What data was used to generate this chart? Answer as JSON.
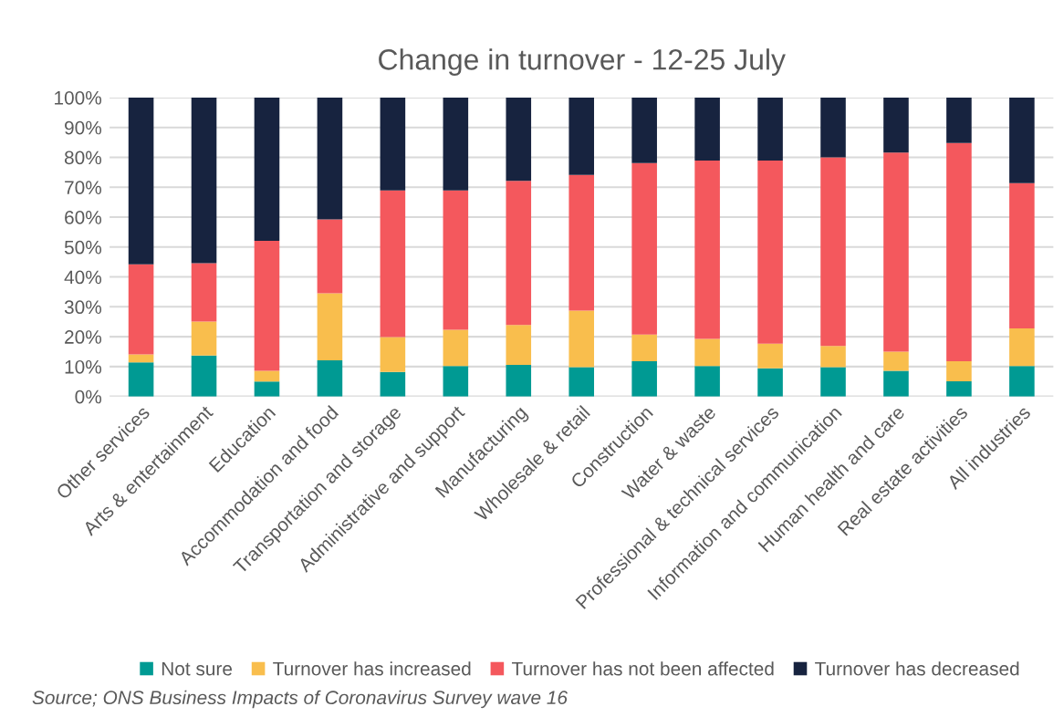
{
  "chart_data": {
    "type": "bar",
    "stacked": true,
    "title": "Change in turnover - 12-25 July",
    "categories": [
      "Other services",
      "Arts & entertainment",
      "Education",
      "Accommodation and food",
      "Transportation and storage",
      "Administrative and support",
      "Manufacturing",
      "Wholesale & retail",
      "Construction",
      "Water & waste",
      "Professional & technical services",
      "Information and communication",
      "Human health and care",
      "Real estate activities",
      "All industries"
    ],
    "series": [
      {
        "name": "Not sure",
        "color": "#009a93",
        "values": [
          11.4,
          13.7,
          5.0,
          12.1,
          8.2,
          10.2,
          10.6,
          9.8,
          11.8,
          10.2,
          9.4,
          9.8,
          8.6,
          5.1,
          10.2
        ]
      },
      {
        "name": "Turnover has increased",
        "color": "#f9be4d",
        "values": [
          2.7,
          11.4,
          3.6,
          22.4,
          11.7,
          12.1,
          13.3,
          18.9,
          8.9,
          9.1,
          8.3,
          7.1,
          6.4,
          6.7,
          12.6
        ]
      },
      {
        "name": "Turnover has not been affected",
        "color": "#f4585d",
        "values": [
          30.1,
          19.5,
          43.5,
          24.7,
          49.0,
          46.6,
          48.2,
          45.4,
          57.4,
          59.6,
          61.2,
          63.1,
          66.6,
          73.0,
          48.6
        ]
      },
      {
        "name": "Turnover has decreased",
        "color": "#17233f",
        "values": [
          55.8,
          55.4,
          47.9,
          40.8,
          31.1,
          31.1,
          27.9,
          25.9,
          21.9,
          21.1,
          21.1,
          20.0,
          18.4,
          15.2,
          28.6
        ]
      }
    ],
    "ylim": [
      0,
      100
    ],
    "yticks": [
      {
        "value": 0,
        "label": "0%"
      },
      {
        "value": 10,
        "label": "10%"
      },
      {
        "value": 20,
        "label": "20%"
      },
      {
        "value": 30,
        "label": "30%"
      },
      {
        "value": 40,
        "label": "40%"
      },
      {
        "value": 50,
        "label": "50%"
      },
      {
        "value": 60,
        "label": "60%"
      },
      {
        "value": 70,
        "label": "70%"
      },
      {
        "value": 80,
        "label": "80%"
      },
      {
        "value": 90,
        "label": "90%"
      },
      {
        "value": 100,
        "label": "100%"
      }
    ],
    "grid": "y",
    "legend": "bottom",
    "annotations": [
      "Source; ONS Business Impacts of Coronavirus Survey wave 16"
    ]
  }
}
